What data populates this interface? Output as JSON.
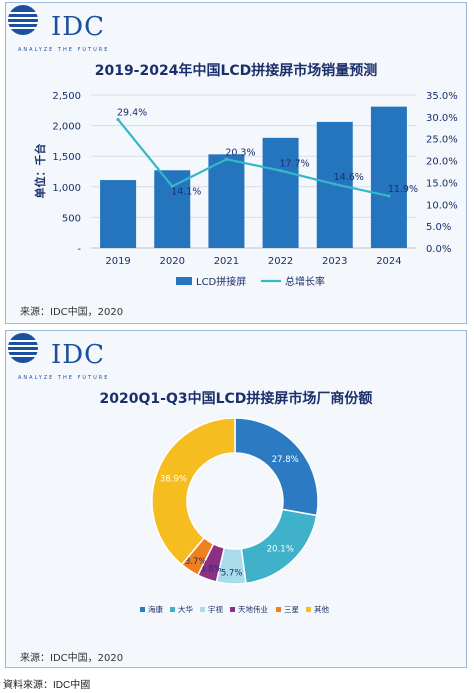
{
  "logo": {
    "text": "IDC",
    "tagline": "ANALYZE THE FUTURE"
  },
  "footer": "資料來源：IDC中國",
  "chart_data": [
    {
      "type": "bar",
      "title": "2019-2024年中国LCD拼接屏市场销量预测",
      "ylabel": "单位：千台",
      "categories": [
        "2019",
        "2020",
        "2021",
        "2022",
        "2023",
        "2024"
      ],
      "series": [
        {
          "name": "LCD拼接屏",
          "type": "bar",
          "axis": "left",
          "color": "#2474be",
          "values": [
            1110,
            1270,
            1530,
            1800,
            2060,
            2310
          ]
        },
        {
          "name": "总增长率",
          "type": "line",
          "axis": "right",
          "color": "#35b7c8",
          "values": [
            29.4,
            14.1,
            20.3,
            17.7,
            14.6,
            11.9
          ],
          "labels": [
            "29.4%",
            "14.1%",
            "20.3%",
            "17.7%",
            "14.6%",
            "11.9%"
          ]
        }
      ],
      "y_left": {
        "ylim": [
          0,
          2500
        ],
        "ticks": [
          "-",
          "500",
          "1,000",
          "1,500",
          "2,000",
          "2,500"
        ]
      },
      "y_right": {
        "ylim": [
          0,
          35
        ],
        "ticks": [
          "0.0%",
          "5.0%",
          "10.0%",
          "15.0%",
          "20.0%",
          "25.0%",
          "30.0%",
          "35.0%"
        ]
      },
      "grid": true,
      "legend": "bottom",
      "source": "来源：IDC中国，2020"
    },
    {
      "type": "pie",
      "style": "donut",
      "title": "2020Q1-Q3中国LCD拼接屏市场厂商份额",
      "slices": [
        {
          "name": "海康",
          "value": 27.8,
          "label": "27.8%",
          "color": "#2c7bc2"
        },
        {
          "name": "大华",
          "value": 20.1,
          "label": "20.1%",
          "color": "#3fb1c9"
        },
        {
          "name": "宇视",
          "value": 5.7,
          "label": "5.7%",
          "color": "#a9dcea"
        },
        {
          "name": "天地伟业",
          "value": 3.8,
          "label": "3.8%",
          "color": "#8e2f86"
        },
        {
          "name": "三星",
          "value": 3.7,
          "label": "3.7%",
          "color": "#f07f22"
        },
        {
          "name": "其他",
          "value": 38.9,
          "label": "38.9%",
          "color": "#f5bd1f"
        }
      ],
      "legend": "bottom",
      "source": "来源：IDC中国，2020"
    }
  ]
}
